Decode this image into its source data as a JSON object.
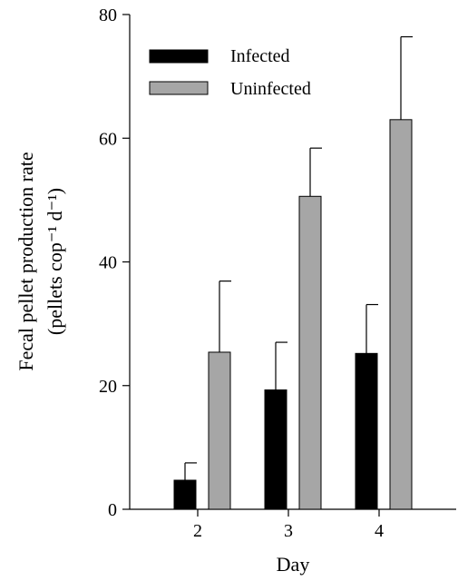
{
  "chart_data": {
    "type": "bar",
    "categories": [
      "2",
      "3",
      "4"
    ],
    "series": [
      {
        "name": "Infected",
        "values": [
          4.7,
          19.3,
          25.2
        ],
        "errors": [
          2.8,
          7.7,
          7.9
        ],
        "color": "#000000"
      },
      {
        "name": "Uninfected",
        "values": [
          25.4,
          50.6,
          63.0
        ],
        "errors": [
          11.5,
          7.8,
          13.4
        ],
        "color": "#a6a6a6"
      }
    ],
    "xlabel": "Day",
    "ylabel_line1": "Fecal pellet production rate",
    "ylabel_line2": "(pellets cop⁻¹ d⁻¹)",
    "ylim": [
      0,
      80
    ],
    "yticks": [
      "0",
      "20",
      "40",
      "60",
      "80"
    ],
    "legend_position": "top-left",
    "grid": false,
    "error_bars": "upper only"
  }
}
